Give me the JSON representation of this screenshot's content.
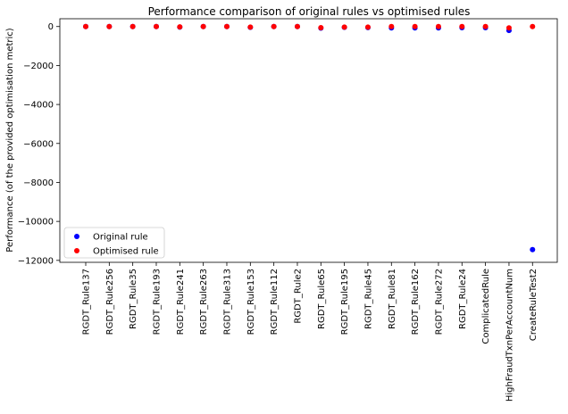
{
  "chart_data": {
    "type": "scatter",
    "title": "Performance comparison of original rules vs optimised rules",
    "xlabel": "",
    "ylabel": "Performance (of the provided optimisation metric)",
    "ylim": [
      -12100,
      400
    ],
    "yticks": [
      0,
      -2000,
      -4000,
      -6000,
      -8000,
      -10000,
      -12000
    ],
    "ytick_labels": [
      "0",
      "−2000",
      "−4000",
      "−6000",
      "−8000",
      "−10000",
      "−12000"
    ],
    "categories": [
      "RGDT_Rule137",
      "RGDT_Rule256",
      "RGDT_Rule35",
      "RGDT_Rule193",
      "RGDT_Rule241",
      "RGDT_Rule263",
      "RGDT_Rule313",
      "RGDT_Rule153",
      "RGDT_Rule112",
      "RGDT_Rule2",
      "RGDT_Rule65",
      "RGDT_Rule195",
      "RGDT_Rule45",
      "RGDT_Rule81",
      "RGDT_Rule162",
      "RGDT_Rule272",
      "RGDT_Rule24",
      "ComplicatedRule",
      "HighFraudTxnPerAccountNum",
      "CreateRuleTest2"
    ],
    "series": [
      {
        "name": "Original rule",
        "color": "#0000ff",
        "values": [
          0,
          0,
          0,
          0,
          -30,
          0,
          0,
          -40,
          0,
          0,
          -80,
          -40,
          -50,
          -70,
          -70,
          -70,
          -60,
          -60,
          -200,
          -11450
        ]
      },
      {
        "name": "Optimised rule",
        "color": "#ff0000",
        "values": [
          0,
          0,
          0,
          0,
          -20,
          0,
          0,
          -30,
          0,
          0,
          -60,
          -30,
          -30,
          0,
          0,
          0,
          0,
          0,
          -70,
          0
        ]
      }
    ],
    "legend_position": "lower-left",
    "grid": false
  }
}
